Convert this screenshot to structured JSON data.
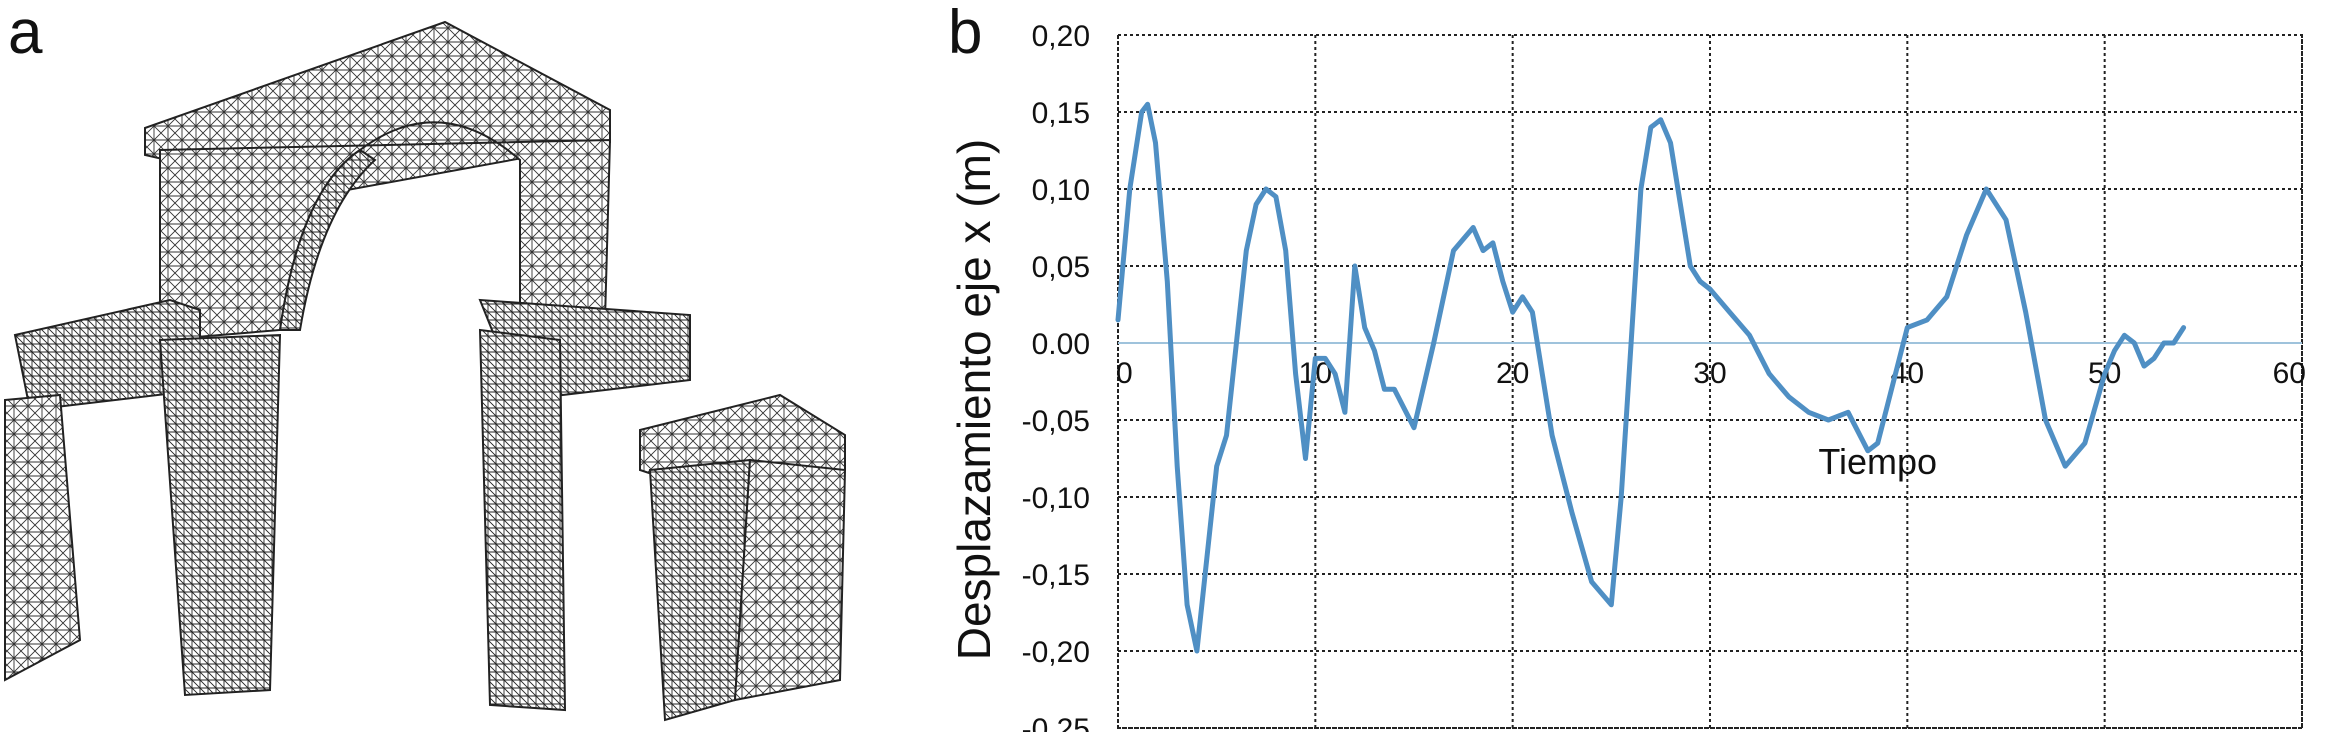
{
  "panels": {
    "a_label": "a",
    "b_label": "b"
  },
  "mesh_figure": {
    "description_icon": "arch-finite-element-mesh-icon"
  },
  "chart_data": {
    "type": "line",
    "title": "",
    "xlabel": "Tiempo",
    "ylabel": "Desplazamiento eje x (m)",
    "xlim": [
      0,
      60
    ],
    "ylim": [
      -0.25,
      0.2
    ],
    "x_ticks": [
      "0",
      "10",
      "20",
      "30",
      "40",
      "50",
      "60"
    ],
    "y_ticks": [
      "0,20",
      "0,15",
      "0,10",
      "0,05",
      "0.00",
      "-0,05",
      "-0,10",
      "-0,15",
      "-0,20",
      "-0,25"
    ],
    "grid": true,
    "line_color": "#4f8fc4",
    "zero_line_color": "#9fc3dc",
    "series": [
      {
        "x": [
          0,
          0.6,
          1.2,
          1.5,
          1.9,
          2.5,
          3,
          3.5,
          4,
          4.5,
          5,
          5.5,
          6,
          6.5,
          7,
          7.5,
          8,
          8.5,
          9,
          9.5,
          10,
          10.5,
          11,
          11.5,
          12,
          12.5,
          13,
          13.5,
          14,
          15,
          16,
          17,
          18,
          18.5,
          19,
          19.5,
          20,
          20.5,
          21,
          22,
          23,
          24,
          25,
          25.5,
          26,
          26.5,
          27,
          27.5,
          28,
          28.5,
          29,
          29.5,
          30,
          31,
          32,
          33,
          34,
          35,
          36,
          37,
          38,
          38.5,
          39,
          40,
          41,
          42,
          43,
          44,
          45,
          46,
          47,
          48,
          49,
          50,
          50.5,
          51,
          51.5,
          52,
          52.5,
          53,
          53.5,
          54
        ],
        "y": [
          0.015,
          0.1,
          0.15,
          0.155,
          0.13,
          0.04,
          -0.08,
          -0.17,
          -0.2,
          -0.14,
          -0.08,
          -0.06,
          0.0,
          0.06,
          0.09,
          0.1,
          0.095,
          0.06,
          -0.02,
          -0.075,
          -0.01,
          -0.01,
          -0.02,
          -0.045,
          0.05,
          0.01,
          -0.005,
          -0.03,
          -0.03,
          -0.055,
          0.0,
          0.06,
          0.075,
          0.06,
          0.065,
          0.04,
          0.02,
          0.03,
          0.02,
          -0.06,
          -0.11,
          -0.155,
          -0.17,
          -0.1,
          0.0,
          0.1,
          0.14,
          0.145,
          0.13,
          0.09,
          0.05,
          0.04,
          0.035,
          0.02,
          0.005,
          -0.02,
          -0.035,
          -0.045,
          -0.05,
          -0.045,
          -0.07,
          -0.065,
          -0.04,
          0.01,
          0.015,
          0.03,
          0.07,
          0.1,
          0.08,
          0.02,
          -0.05,
          -0.08,
          -0.065,
          -0.02,
          -0.005,
          0.005,
          0.0,
          -0.015,
          -0.01,
          0.0,
          0.0,
          0.01
        ]
      }
    ]
  }
}
